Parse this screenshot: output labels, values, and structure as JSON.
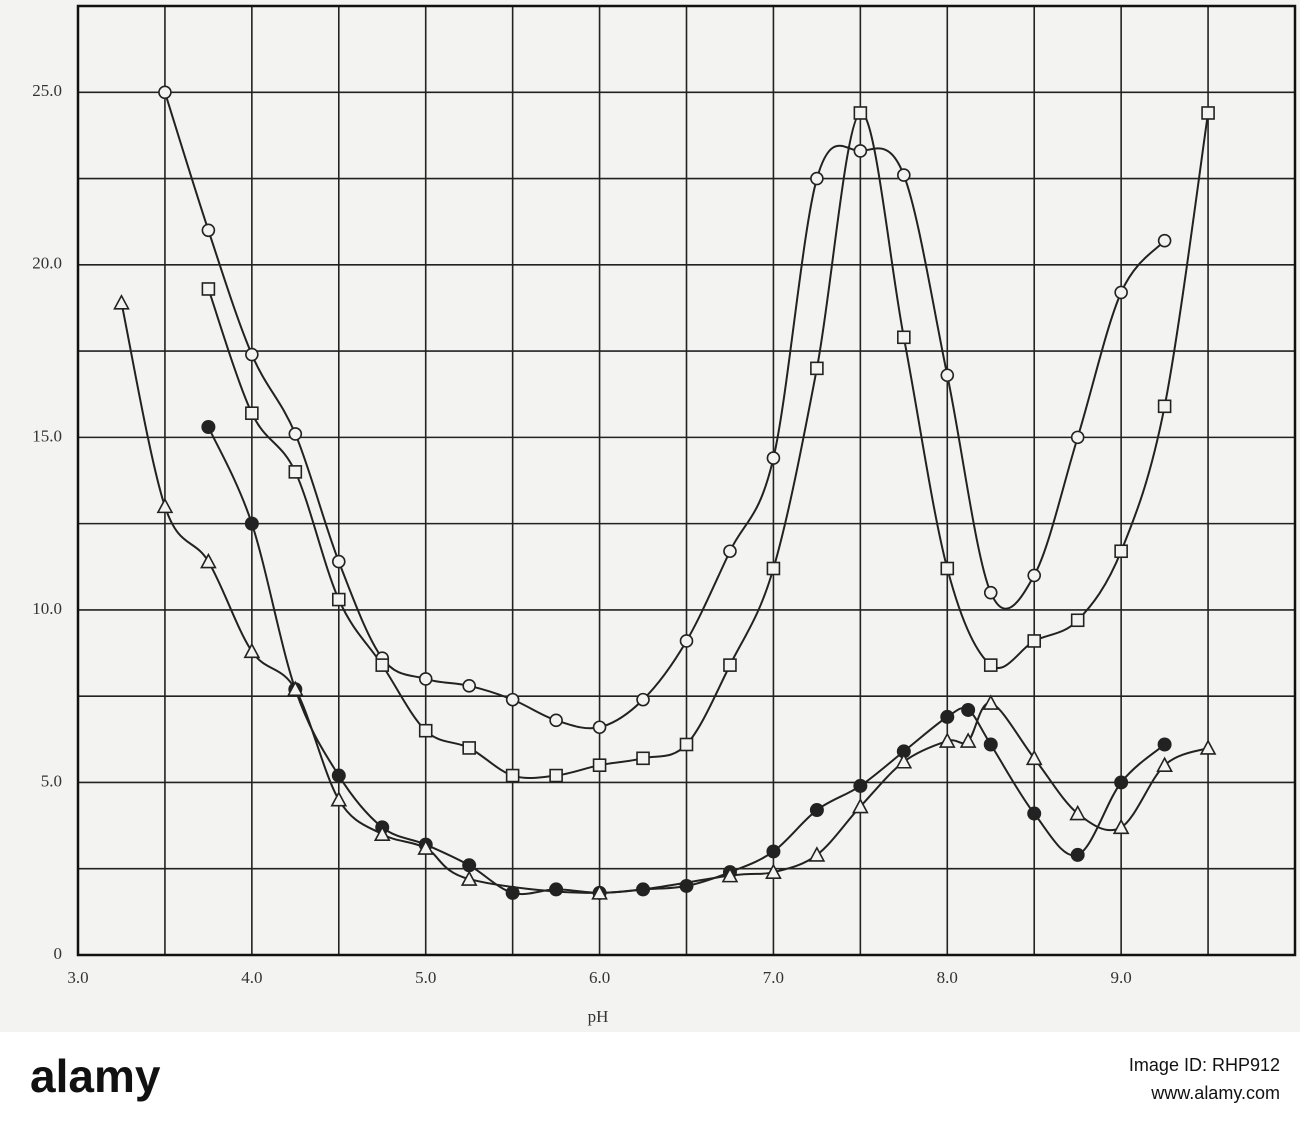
{
  "chart_data": {
    "type": "scatter",
    "x_label": "pH",
    "xlim": [
      3,
      10
    ],
    "ylim": [
      0,
      27.5
    ],
    "xticks": [
      {
        "value": 3,
        "label": "3.0"
      },
      {
        "value": 4,
        "label": "4.0"
      },
      {
        "value": 5,
        "label": "5.0"
      },
      {
        "value": 6,
        "label": "6.0"
      },
      {
        "value": 7,
        "label": "7.0"
      },
      {
        "value": 8,
        "label": "8.0"
      },
      {
        "value": 9,
        "label": "9.0"
      }
    ],
    "xminorticks": [
      3.5,
      4.5,
      5.5,
      6.5,
      7.5,
      8.5,
      9.5
    ],
    "yticks": [
      0,
      {
        "value": 5,
        "label": "5.0"
      },
      {
        "value": 10,
        "label": "10.0"
      },
      {
        "value": 15,
        "label": "15.0"
      },
      {
        "value": 20,
        "label": "20.0"
      },
      {
        "value": 25,
        "label": "25.0"
      }
    ],
    "yminorticks": [
      2.5,
      7.5,
      12.5,
      17.5,
      22.5
    ],
    "grid": true,
    "color": "#222",
    "series": [
      {
        "marker": "open-circle",
        "x": [
          3.5,
          3.75,
          4.0,
          4.25,
          4.5,
          4.75,
          5.0,
          5.25,
          5.5,
          5.75,
          6.0,
          6.25,
          6.5,
          6.75,
          7.0,
          7.25,
          7.5,
          7.75,
          8.0,
          8.25,
          8.5,
          8.75,
          9.0,
          9.25
        ],
        "values": [
          25.0,
          21.0,
          17.4,
          15.1,
          11.4,
          8.6,
          8.0,
          7.8,
          7.4,
          6.8,
          6.6,
          7.4,
          9.1,
          11.7,
          14.4,
          22.5,
          23.3,
          22.6,
          16.8,
          10.5,
          11.0,
          15.0,
          19.2,
          20.7
        ]
      },
      {
        "marker": "open-square",
        "x": [
          3.75,
          4.0,
          4.25,
          4.5,
          4.75,
          5.0,
          5.25,
          5.5,
          5.75,
          6.0,
          6.25,
          6.5,
          6.75,
          7.0,
          7.25,
          7.5,
          7.75,
          8.0,
          8.25,
          8.5,
          8.75,
          9.0,
          9.25,
          9.5
        ],
        "values": [
          19.3,
          15.7,
          14.0,
          10.3,
          8.4,
          6.5,
          6.0,
          5.2,
          5.2,
          5.5,
          5.7,
          6.1,
          8.4,
          11.2,
          17.0,
          24.4,
          17.9,
          11.2,
          8.4,
          9.1,
          9.7,
          11.7,
          15.9,
          24.4
        ]
      },
      {
        "marker": "filled-circle",
        "x": [
          3.75,
          4.0,
          4.25,
          4.5,
          4.75,
          5.0,
          5.25,
          5.5,
          5.75,
          6.0,
          6.25,
          6.5,
          6.75,
          7.0,
          7.25,
          7.5,
          7.75,
          8.0,
          8.12,
          8.25,
          8.5,
          8.75,
          9.0,
          9.25
        ],
        "values": [
          15.3,
          12.5,
          7.7,
          5.2,
          3.7,
          3.2,
          2.6,
          1.8,
          1.9,
          1.8,
          1.9,
          2.0,
          2.4,
          3.0,
          4.2,
          4.9,
          5.9,
          6.9,
          7.1,
          6.1,
          4.1,
          2.9,
          5.0,
          6.1
        ]
      },
      {
        "marker": "open-triangle",
        "x": [
          3.25,
          3.5,
          3.75,
          4.0,
          4.25,
          4.5,
          4.75,
          5.0,
          5.25,
          6.0,
          6.75,
          7.0,
          7.25,
          7.5,
          7.75,
          8.0,
          8.12,
          8.25,
          8.5,
          8.75,
          9.0,
          9.25,
          9.5
        ],
        "values": [
          18.9,
          13.0,
          11.4,
          8.8,
          7.7,
          4.5,
          3.5,
          3.1,
          2.2,
          1.8,
          2.3,
          2.4,
          2.9,
          4.3,
          5.6,
          6.2,
          6.2,
          7.3,
          5.7,
          4.1,
          3.7,
          5.5,
          6.0
        ]
      }
    ]
  },
  "watermark": {
    "logo": "alamy",
    "image_id": "Image ID: RHP912",
    "url": "www.alamy.com"
  }
}
